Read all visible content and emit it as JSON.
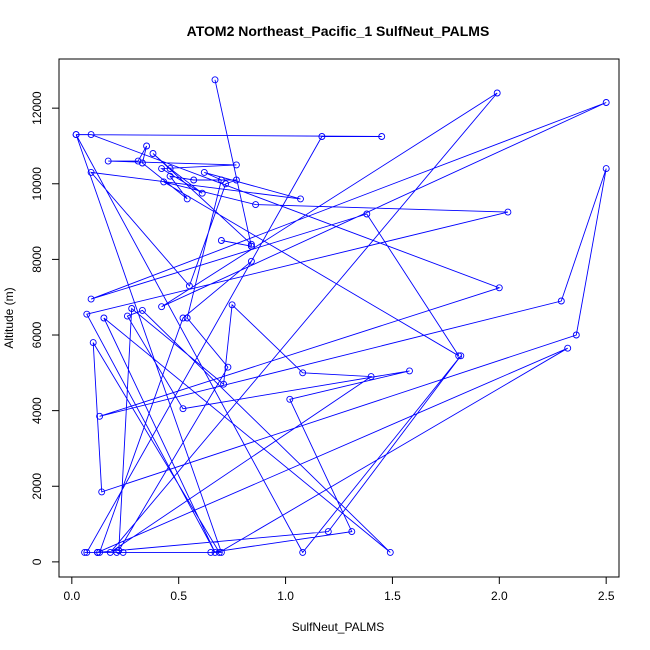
{
  "chart_data": {
    "type": "line",
    "title": "ATOM2 Northeast_Pacific_1 SulfNeut_PALMS",
    "xlabel": "SulfNeut_PALMS",
    "ylabel": "Altitude (m)",
    "xlim": [
      -0.06,
      2.56
    ],
    "ylim": [
      -400,
      13300
    ],
    "xticks": [
      0.0,
      0.5,
      1.0,
      1.5,
      2.0,
      2.5
    ],
    "xtick_labels": [
      "0.0",
      "0.5",
      "1.0",
      "1.5",
      "2.0",
      "2.5"
    ],
    "yticks": [
      0,
      2000,
      4000,
      6000,
      8000,
      10000,
      12000
    ],
    "ytick_labels": [
      "0",
      "2000",
      "4000",
      "6000",
      "8000",
      "10000",
      "12000"
    ],
    "series_color": "#0000ff",
    "series": [
      {
        "x": [
          0.67,
          0.84,
          0.7,
          0.84,
          0.84,
          0.38,
          0.46,
          0.61,
          0.42,
          0.77,
          0.17,
          0.31,
          0.35,
          0.33,
          0.54,
          0.46,
          0.57,
          0.77,
          0.72,
          0.55,
          0.09,
          1.07,
          0.62,
          0.7,
          0.54,
          0.73,
          0.22,
          0.28,
          0.71,
          0.75,
          1.08,
          1.4,
          0.18,
          1.99,
          0.42,
          2.5,
          0.09,
          1.38,
          1.81,
          0.43,
          0.86,
          2.04,
          0.07,
          0.67,
          0.15,
          1.49,
          0.33,
          0.26,
          0.52,
          1.58,
          1.02,
          1.31,
          0.65,
          0.12,
          0.07,
          1.17,
          1.45,
          0.02,
          0.09,
          2.0,
          0.13,
          2.29,
          2.5,
          2.36,
          0.14,
          0.1,
          0.69,
          2.32,
          0.12,
          1.2,
          1.82,
          1.08,
          0.02,
          0.7,
          0.06,
          0.21,
          0.12,
          0.24,
          0.13,
          0.52,
          0.84
        ],
        "y": [
          12750,
          8350,
          8500,
          8350,
          8400,
          10800,
          10400,
          9750,
          10400,
          10500,
          10600,
          10600,
          11000,
          10550,
          9600,
          10200,
          10100,
          10100,
          10000,
          7300,
          10300,
          9600,
          10300,
          10100,
          6450,
          5150,
          300,
          6700,
          4700,
          6800,
          5000,
          4900,
          250,
          12400,
          6750,
          12150,
          6950,
          9200,
          5450,
          10050,
          9450,
          9250,
          6550,
          250,
          6450,
          250,
          6650,
          6500,
          4050,
          5050,
          4300,
          800,
          250,
          250,
          250,
          11250,
          11250,
          11300,
          11300,
          7250,
          3850,
          6900,
          10400,
          6000,
          1850,
          5800,
          250,
          5650,
          250,
          800,
          5450,
          250,
          11300,
          250,
          250,
          250,
          250,
          250,
          250,
          6450,
          7950
        ]
      }
    ]
  }
}
